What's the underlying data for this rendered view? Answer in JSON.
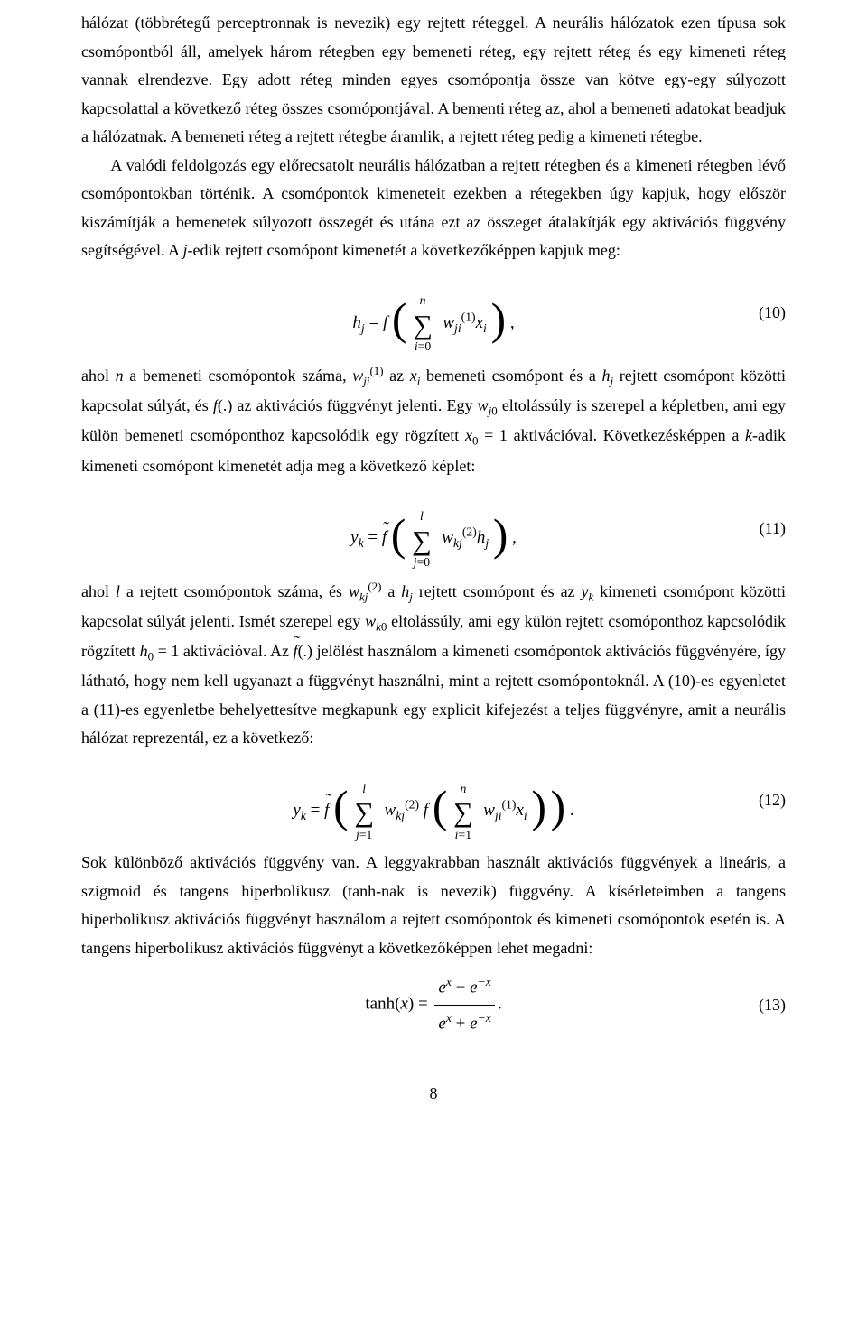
{
  "p1": "hálózat (többrétegű perceptronnak is nevezik) egy rejtett réteggel. A neurális hálózatok ezen típusa sok csomópontból áll, amelyek három rétegben egy bemeneti réteg, egy rejtett réteg és egy kimeneti réteg vannak elrendezve. Egy adott réteg minden egyes csomópontja össze van kötve egy-egy súlyozott kapcsolattal a következő réteg összes csomópontjával. A bementi réteg az, ahol a bemeneti adatokat beadjuk a hálózatnak. A bemeneti réteg a rejtett rétegbe áramlik, a rejtett réteg pedig a kimeneti rétegbe.",
  "p2_a": "A valódi feldolgozás egy előrecsatolt neurális hálózatban a rejtett rétegben és a kimeneti rétegben lévő csomópontokban történik. A csomópontok kimeneteit ezekben a rétegekben úgy kapjuk, hogy először kiszámítják a bemenetek súlyozott összegét és utána ezt az összeget átalakítják egy aktivációs függvény segítségével. A ",
  "p2_b": "-edik rejtett csomópont kimenetét a következőképpen kapjuk meg:",
  "p3_a": "ahol ",
  "p3_b": " a bemeneti csomópontok száma, ",
  "p3_c": " az ",
  "p3_d": " bemeneti csomópont és a ",
  "p3_e": " rejtett csomópont közötti kapcsolat súlyát, és ",
  "p3_f": " az aktivációs függvényt jelenti. Egy ",
  "p3_g": " eltolássúly is szerepel a képletben, ami egy külön bemeneti csomóponthoz kapcsolódik egy rögzített ",
  "p3_h": " aktivációval. Következésképpen a ",
  "p3_i": "-adik kimeneti csomópont kimenetét adja meg a következő képlet:",
  "p4_a": "ahol ",
  "p4_b": " a rejtett csomópontok száma, és ",
  "p4_c": " a ",
  "p4_d": " rejtett csomópont és az ",
  "p4_e": " kimeneti csomópont közötti kapcsolat súlyát jelenti. Ismét szerepel egy ",
  "p4_f": " eltolássúly, ami egy külön rejtett csomóponthoz kapcsolódik rögzített ",
  "p4_g": " aktivációval. Az ",
  "p4_h": " jelölést használom a kimeneti csomópontok aktivációs függvényére, így látható, hogy nem kell ugyanazt a függvényt használni, mint a rejtett csomópontoknál. A (10)-es egyenletet a (11)-es egyenletbe behelyettesítve megkapunk egy explicit kifejezést a teljes függvényre, amit a neurális hálózat reprezentál, ez a következő:",
  "p5": "Sok különböző aktivációs függvény van. A leggyakrabban használt aktivációs függvények a lineáris, a szigmoid és tangens hiperbolikusz (tanh-nak is nevezik) függvény. A kísérleteimben a tangens hiperbolikusz aktivációs függvényt használom a rejtett csomópontok és kimeneti csomópontok esetén is. A tangens hiperbolikusz aktivációs függvényt a következőképpen lehet megadni:",
  "eq10_num": "(10)",
  "eq11_num": "(11)",
  "eq12_num": "(12)",
  "eq13_num": "(13)",
  "page_number": "8"
}
